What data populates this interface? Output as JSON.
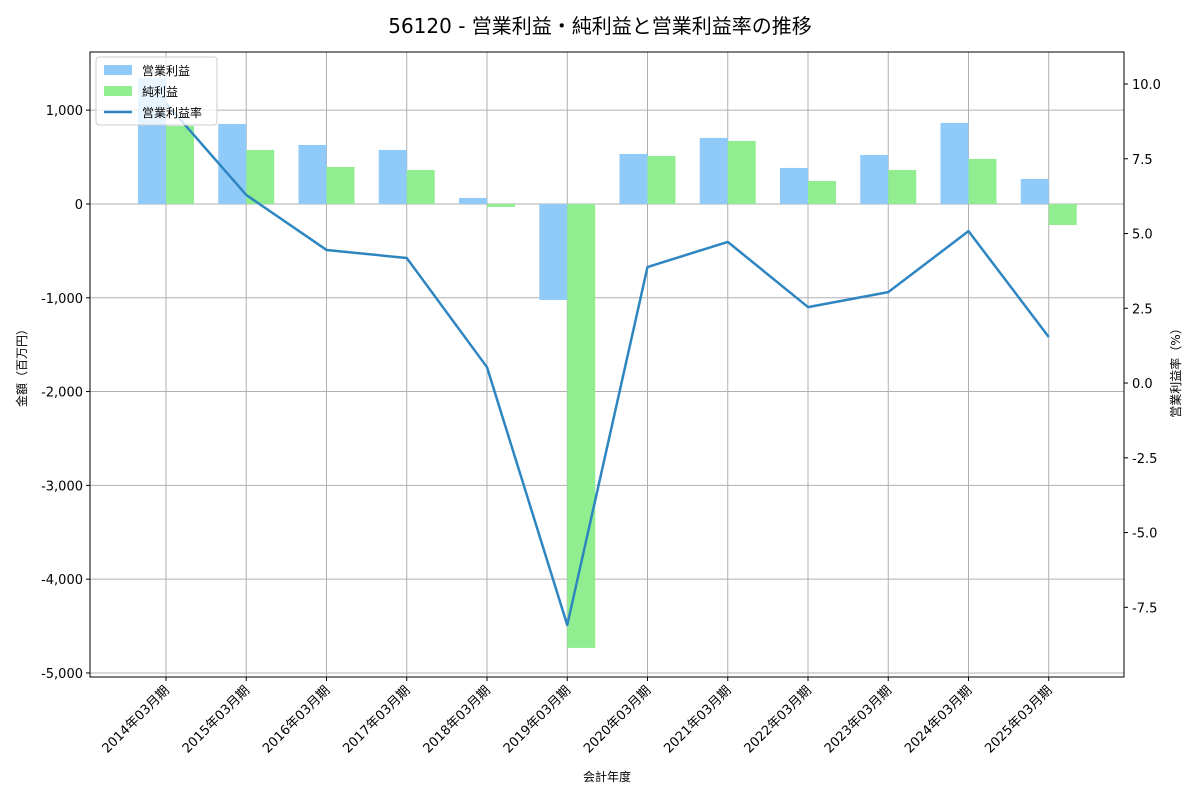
{
  "chart_data": {
    "type": "bar",
    "title": "56120 - 営業利益・純利益と営業利益率の推移",
    "xlabel": "会計年度",
    "ylabel": "金額（百万円）",
    "y2label": "営業利益率（%）",
    "categories": [
      "2014年03月期",
      "2015年03月期",
      "2016年03月期",
      "2017年03月期",
      "2018年03月期",
      "2019年03月期",
      "2020年03月期",
      "2021年03月期",
      "2022年03月期",
      "2023年03月期",
      "2024年03月期",
      "2025年03月期"
    ],
    "series": [
      {
        "name": "営業利益",
        "type": "bar",
        "axis": "left",
        "color": "#90CAF9",
        "values": [
          1340,
          853,
          629,
          576,
          64,
          -1023,
          533,
          704,
          384,
          522,
          864,
          267
        ]
      },
      {
        "name": "純利益",
        "type": "bar",
        "axis": "left",
        "color": "#90EE90",
        "values": [
          832,
          576,
          394,
          362,
          -32,
          -4733,
          512,
          672,
          245,
          362,
          480,
          -224
        ]
      },
      {
        "name": "営業利益率",
        "type": "line",
        "axis": "right",
        "color": "#2E86C1",
        "values": [
          9.36,
          6.29,
          4.45,
          4.18,
          0.53,
          -8.09,
          3.88,
          4.72,
          2.54,
          3.04,
          5.08,
          1.54
        ]
      }
    ],
    "ylim": [
      -5043,
      1620
    ],
    "y2lim": [
      -9.83,
      11.07
    ],
    "yticks": [
      1000,
      0,
      -1000,
      -2000,
      -3000,
      -4000,
      -5000
    ],
    "yticklabels": [
      "1,000",
      "0",
      "-1,000",
      "-2,000",
      "-3,000",
      "-4,000",
      "-5,000"
    ],
    "y2ticks": [
      10.0,
      7.5,
      5.0,
      2.5,
      0.0,
      -2.5,
      -5.0,
      -7.5
    ],
    "y2ticklabels": [
      "10.0",
      "7.5",
      "5.0",
      "2.5",
      "0.0",
      "-2.5",
      "-5.0",
      "-7.5"
    ],
    "grid": true,
    "legend_position": "upper left"
  }
}
